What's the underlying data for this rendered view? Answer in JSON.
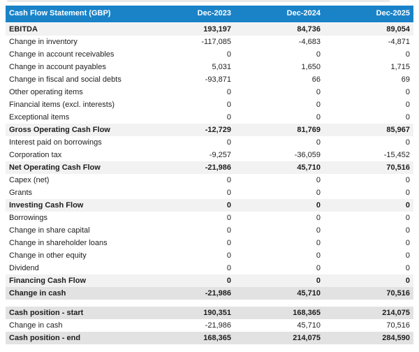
{
  "table": {
    "title": "Cash Flow Statement (GBP)",
    "columns": [
      "Dec-2023",
      "Dec-2024",
      "Dec-2025"
    ],
    "colors": {
      "header_bg": "#1a83c8",
      "header_text": "#ffffff",
      "subtotal_bg": "#f2f2f2",
      "total_bg": "#e2e2e2"
    },
    "sections": [
      {
        "rows": [
          {
            "label": "EBITDA",
            "values": [
              "193,197",
              "84,736",
              "89,054"
            ],
            "style": "subtotal"
          },
          {
            "label": "Change in inventory",
            "values": [
              "-117,085",
              "-4,683",
              "-4,871"
            ],
            "style": "normal"
          },
          {
            "label": "Change in account receivables",
            "values": [
              "0",
              "0",
              "0"
            ],
            "style": "normal"
          },
          {
            "label": "Change in account payables",
            "values": [
              "5,031",
              "1,650",
              "1,715"
            ],
            "style": "normal"
          },
          {
            "label": "Change in fiscal and social debts",
            "values": [
              "-93,871",
              "66",
              "69"
            ],
            "style": "normal"
          },
          {
            "label": "Other operating items",
            "values": [
              "0",
              "0",
              "0"
            ],
            "style": "normal"
          },
          {
            "label": "Financial items (excl. interests)",
            "values": [
              "0",
              "0",
              "0"
            ],
            "style": "normal"
          },
          {
            "label": "Exceptional items",
            "values": [
              "0",
              "0",
              "0"
            ],
            "style": "normal"
          },
          {
            "label": "Gross Operating Cash Flow",
            "values": [
              "-12,729",
              "81,769",
              "85,967"
            ],
            "style": "subtotal"
          },
          {
            "label": "Interest paid on borrowings",
            "values": [
              "0",
              "0",
              "0"
            ],
            "style": "normal"
          },
          {
            "label": "Corporation tax",
            "values": [
              "-9,257",
              "-36,059",
              "-15,452"
            ],
            "style": "normal"
          },
          {
            "label": "Net Operating Cash Flow",
            "values": [
              "-21,986",
              "45,710",
              "70,516"
            ],
            "style": "subtotal"
          },
          {
            "label": "Capex (net)",
            "values": [
              "0",
              "0",
              "0"
            ],
            "style": "normal"
          },
          {
            "label": "Grants",
            "values": [
              "0",
              "0",
              "0"
            ],
            "style": "normal"
          },
          {
            "label": "Investing Cash Flow",
            "values": [
              "0",
              "0",
              "0"
            ],
            "style": "subtotal"
          },
          {
            "label": "Borrowings",
            "values": [
              "0",
              "0",
              "0"
            ],
            "style": "normal"
          },
          {
            "label": "Change in share capital",
            "values": [
              "0",
              "0",
              "0"
            ],
            "style": "normal"
          },
          {
            "label": "Change in shareholder loans",
            "values": [
              "0",
              "0",
              "0"
            ],
            "style": "normal"
          },
          {
            "label": "Change in other equity",
            "values": [
              "0",
              "0",
              "0"
            ],
            "style": "normal"
          },
          {
            "label": "Dividend",
            "values": [
              "0",
              "0",
              "0"
            ],
            "style": "normal"
          },
          {
            "label": "Financing Cash Flow",
            "values": [
              "0",
              "0",
              "0"
            ],
            "style": "subtotal"
          },
          {
            "label": "Change in cash",
            "values": [
              "-21,986",
              "45,710",
              "70,516"
            ],
            "style": "total"
          }
        ]
      },
      {
        "rows": [
          {
            "label": "Cash position - start",
            "values": [
              "190,351",
              "168,365",
              "214,075"
            ],
            "style": "total"
          },
          {
            "label": "Change in cash",
            "values": [
              "-21,986",
              "45,710",
              "70,516"
            ],
            "style": "normal"
          },
          {
            "label": "Cash position - end",
            "values": [
              "168,365",
              "214,075",
              "284,590"
            ],
            "style": "total"
          }
        ]
      }
    ]
  }
}
